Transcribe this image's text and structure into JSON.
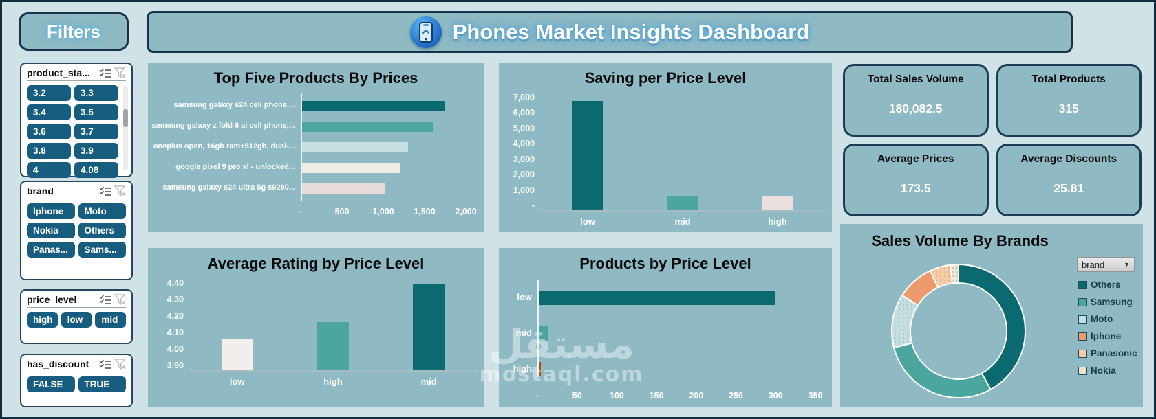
{
  "sidebar": {
    "title": "Filters",
    "slicers": [
      {
        "id": "product_stars",
        "label": "product_sta...",
        "items": [
          "3.2",
          "3.3",
          "3.4",
          "3.5",
          "3.6",
          "3.7",
          "3.8",
          "3.9",
          "4",
          "4.08"
        ]
      },
      {
        "id": "brand",
        "label": "brand",
        "items": [
          "Iphone",
          "Moto",
          "Nokia",
          "Others",
          "Panas...",
          "Sams..."
        ]
      },
      {
        "id": "price_level",
        "label": "price_level",
        "items": [
          "high",
          "low",
          "mid"
        ]
      },
      {
        "id": "has_discount",
        "label": "has_discount",
        "items": [
          "FALSE",
          "TRUE"
        ]
      }
    ]
  },
  "header": {
    "title": "Phones Market Insights Dashboard",
    "icon": "phone-icon"
  },
  "kpis": [
    {
      "label": "Total Sales Volume",
      "value": "180,082.5"
    },
    {
      "label": "Total Products",
      "value": "315"
    },
    {
      "label": "Average Prices",
      "value": "173.5"
    },
    {
      "label": "Average Discounts",
      "value": "25.81"
    }
  ],
  "chart_data": [
    {
      "id": "top_products",
      "type": "bar",
      "orientation": "horizontal",
      "title": "Top Five Products By Prices",
      "categories": [
        "samsung galaxy s24 cell phone,...",
        "samsung galaxy z fold 6 ai cell phone,...",
        "oneplus open, 16gb ram+512gb, dual-...",
        "google pixel 9 pro xl - unlocked...",
        "samsung galaxy s24 ultra 5g s9280..."
      ],
      "values": [
        1740,
        1610,
        1300,
        1210,
        1020
      ],
      "xlim": [
        0,
        2000
      ],
      "x_ticks": [
        "-",
        "500",
        "1,000",
        "1,500",
        "2,000"
      ],
      "bar_colors": [
        "#0b6a70",
        "#4aa69f",
        "#c5dedf",
        "#f1ece6",
        "#e8dcdb"
      ],
      "bar_patterns": [
        false,
        false,
        true,
        false,
        false
      ]
    },
    {
      "id": "saving_by_price",
      "type": "column",
      "title": "Saving per Price Level",
      "categories": [
        "low",
        "mid",
        "high"
      ],
      "values": [
        6500,
        850,
        800
      ],
      "ylim": [
        0,
        7000
      ],
      "y_ticks": [
        "7,000",
        "6,000",
        "5,000",
        "4,000",
        "3,000",
        "2,000",
        "1,000",
        "-"
      ],
      "bar_colors": [
        "#0b6a70",
        "#4aa69f",
        "#ece0df"
      ],
      "bar_patterns": [
        false,
        false,
        false
      ]
    },
    {
      "id": "rating_by_price",
      "type": "column",
      "title": "Average Rating by Price Level",
      "categories": [
        "low",
        "high",
        "mid"
      ],
      "values": [
        4.07,
        4.16,
        4.37
      ],
      "ylim": [
        3.9,
        4.4
      ],
      "y_ticks": [
        "4.40",
        "4.30",
        "4.20",
        "4.10",
        "4.00",
        "3.90"
      ],
      "bar_colors": [
        "#f3edec",
        "#4aa69f",
        "#0b6a70"
      ],
      "bar_patterns": [
        false,
        false,
        false
      ]
    },
    {
      "id": "products_by_price",
      "type": "bar",
      "orientation": "horizontal",
      "title": "Products by Price Level",
      "categories": [
        "low",
        "mid",
        "high"
      ],
      "values": [
        300,
        14,
        4
      ],
      "xlim": [
        0,
        350
      ],
      "x_ticks": [
        "-",
        "50",
        "100",
        "150",
        "200",
        "250",
        "300",
        "350"
      ],
      "bar_colors": [
        "#0b6a70",
        "#4aa69f",
        "#ad4f0e"
      ],
      "bar_patterns": [
        false,
        false,
        false
      ]
    },
    {
      "id": "sales_by_brand",
      "type": "donut",
      "title": "Sales Volume By Brands",
      "dropdown_value": "brand",
      "legend_position": "right",
      "segments": [
        {
          "name": "Others",
          "value": 42,
          "color": "#0b6a70",
          "pattern": false
        },
        {
          "name": "Samsung",
          "value": 29,
          "color": "#4aa69f",
          "pattern": false
        },
        {
          "name": "Moto",
          "value": 13,
          "color": "#c5dedf",
          "pattern": true
        },
        {
          "name": "Iphone",
          "value": 9,
          "color": "#ec9a6c",
          "pattern": false
        },
        {
          "name": "Panasonic",
          "value": 5,
          "color": "#f6cba6",
          "pattern": true
        },
        {
          "name": "Nokia",
          "value": 2,
          "color": "#f3e3cd",
          "pattern": true
        }
      ]
    }
  ],
  "watermark": {
    "line1": "مستقل",
    "line2": "mostaql.com"
  }
}
